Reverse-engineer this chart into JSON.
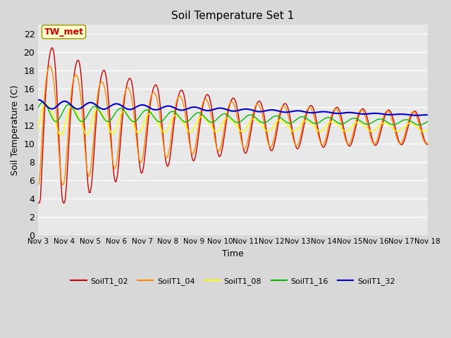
{
  "title": "Soil Temperature Set 1",
  "xlabel": "Time",
  "ylabel": "Soil Temperature (C)",
  "ylim": [
    0,
    23
  ],
  "yticks": [
    0,
    2,
    4,
    6,
    8,
    10,
    12,
    14,
    16,
    18,
    20,
    22
  ],
  "x_tick_days": [
    0,
    1,
    2,
    3,
    4,
    5,
    6,
    7,
    8,
    9,
    10,
    11,
    12,
    13,
    14,
    15
  ],
  "x_labels": [
    "Nov 3",
    "Nov 4",
    "Nov 5",
    "Nov 6",
    "Nov 7",
    "Nov 8",
    "Nov 9",
    "Nov 10",
    "Nov 11",
    "Nov 12",
    "Nov 13",
    "Nov 14",
    "Nov 15",
    "Nov 16",
    "Nov 17",
    "Nov 18"
  ],
  "annotation": "TW_met",
  "fig_bg": "#d8d8d8",
  "plot_bg": "#e8e8e8",
  "grid_color": "#ffffff",
  "series_names": [
    "SoilT1_02",
    "SoilT1_04",
    "SoilT1_08",
    "SoilT1_16",
    "SoilT1_32"
  ],
  "series_colors": [
    "#cc0000",
    "#ff8800",
    "#ffff00",
    "#00bb00",
    "#0000cc"
  ],
  "series_linewidths": [
    1.0,
    1.0,
    1.0,
    1.0,
    1.5
  ]
}
